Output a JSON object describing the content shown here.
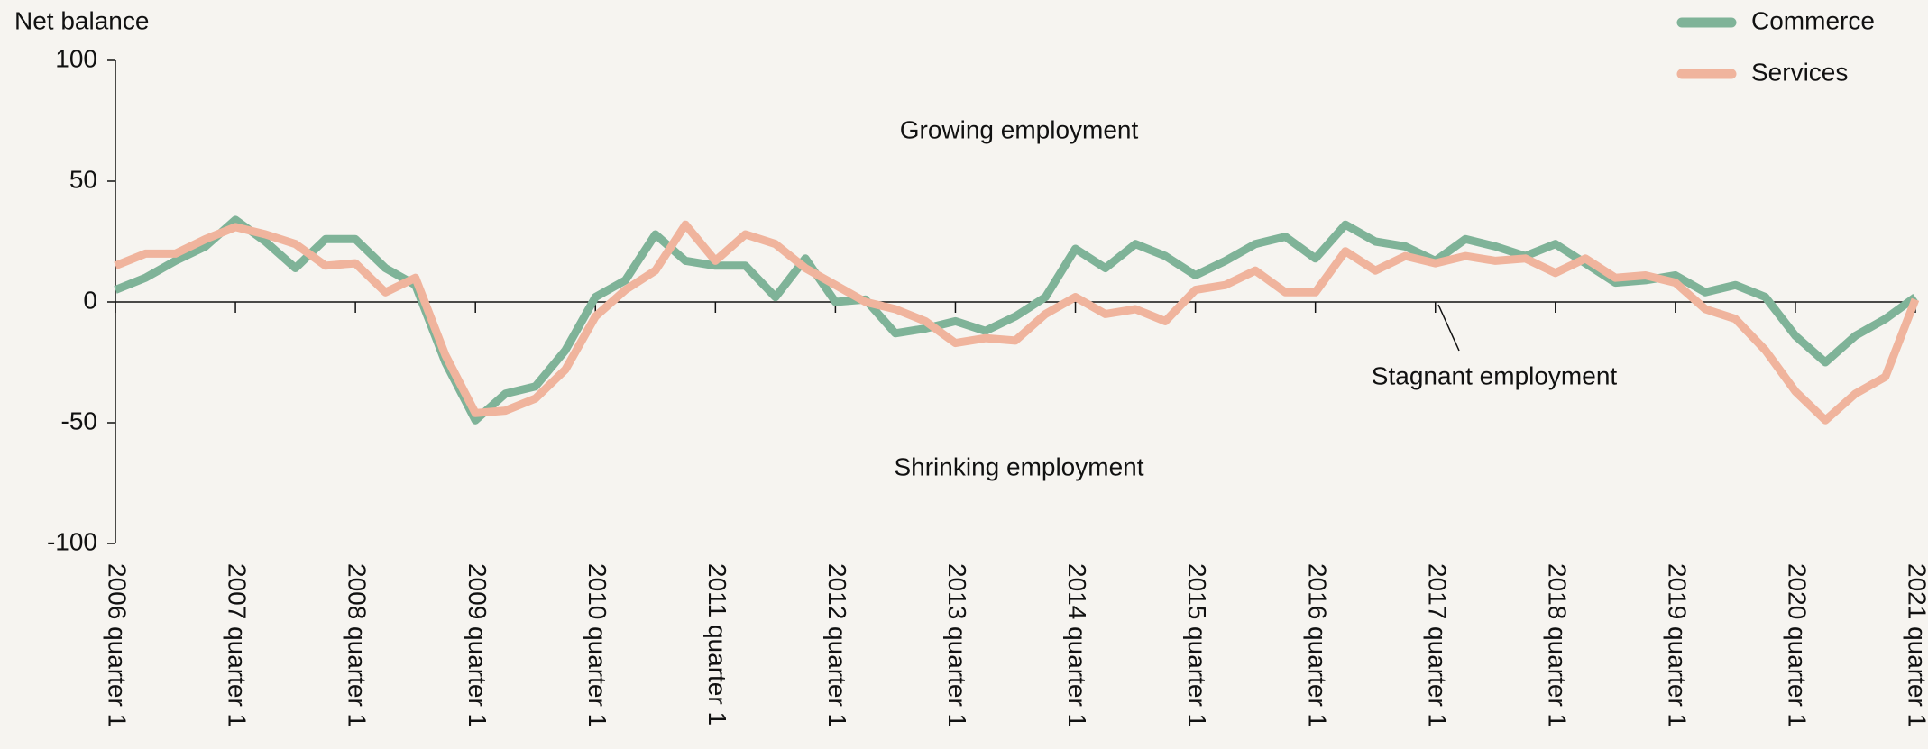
{
  "chart_data": {
    "type": "line",
    "y_label": "Net balance",
    "categories": [
      "2006 quarter 1",
      null,
      null,
      null,
      "2007 quarter 1",
      null,
      null,
      null,
      "2008 quarter 1",
      null,
      null,
      null,
      "2009 quarter 1",
      null,
      null,
      null,
      "2010 quarter 1",
      null,
      null,
      null,
      "2011 quarter 1",
      null,
      null,
      null,
      "2012 quarter 1",
      null,
      null,
      null,
      "2013 quarter 1",
      null,
      null,
      null,
      "2014 quarter 1",
      null,
      null,
      null,
      "2015 quarter 1",
      null,
      null,
      null,
      "2016 quarter 1",
      null,
      null,
      null,
      "2017 quarter 1",
      null,
      null,
      null,
      "2018 quarter 1",
      null,
      null,
      null,
      "2019 quarter 1",
      null,
      null,
      null,
      "2020 quarter 1",
      null,
      null,
      null,
      "2021 quarter 1"
    ],
    "series": [
      {
        "name": "Commerce",
        "color": "#7fb398",
        "values": [
          5,
          10,
          17,
          23,
          34,
          25,
          14,
          26,
          26,
          14,
          7,
          -25,
          -49,
          -38,
          -35,
          -20,
          2,
          9,
          28,
          17,
          15,
          15,
          2,
          18,
          0,
          1,
          -13,
          -11,
          -8,
          -12,
          -6,
          2,
          22,
          14,
          24,
          19,
          11,
          17,
          24,
          27,
          18,
          32,
          25,
          23,
          17,
          26,
          23,
          19,
          24,
          16,
          8,
          9,
          11,
          4,
          7,
          2,
          -14,
          -25,
          -14,
          -7,
          2
        ]
      },
      {
        "name": "Services",
        "color": "#f0b49d",
        "values": [
          15,
          20,
          20,
          26,
          31,
          28,
          24,
          15,
          16,
          4,
          10,
          -22,
          -46,
          -45,
          -40,
          -28,
          -6,
          5,
          13,
          32,
          17,
          28,
          24,
          14,
          7,
          0,
          -3,
          -8,
          -17,
          -15,
          -16,
          -5,
          2,
          -5,
          -3,
          -8,
          5,
          7,
          13,
          4,
          4,
          21,
          13,
          19,
          16,
          19,
          17,
          18,
          12,
          18,
          10,
          11,
          8,
          -3,
          -7,
          -20,
          -37,
          -49,
          -38,
          -31,
          1
        ]
      }
    ],
    "ylim": [
      -100,
      100
    ],
    "yticks": [
      -100,
      -50,
      0,
      50,
      100
    ],
    "annotations": [
      "Growing employment",
      "Shrinking employment",
      "Stagnant employment"
    ],
    "legend": "top-right"
  }
}
